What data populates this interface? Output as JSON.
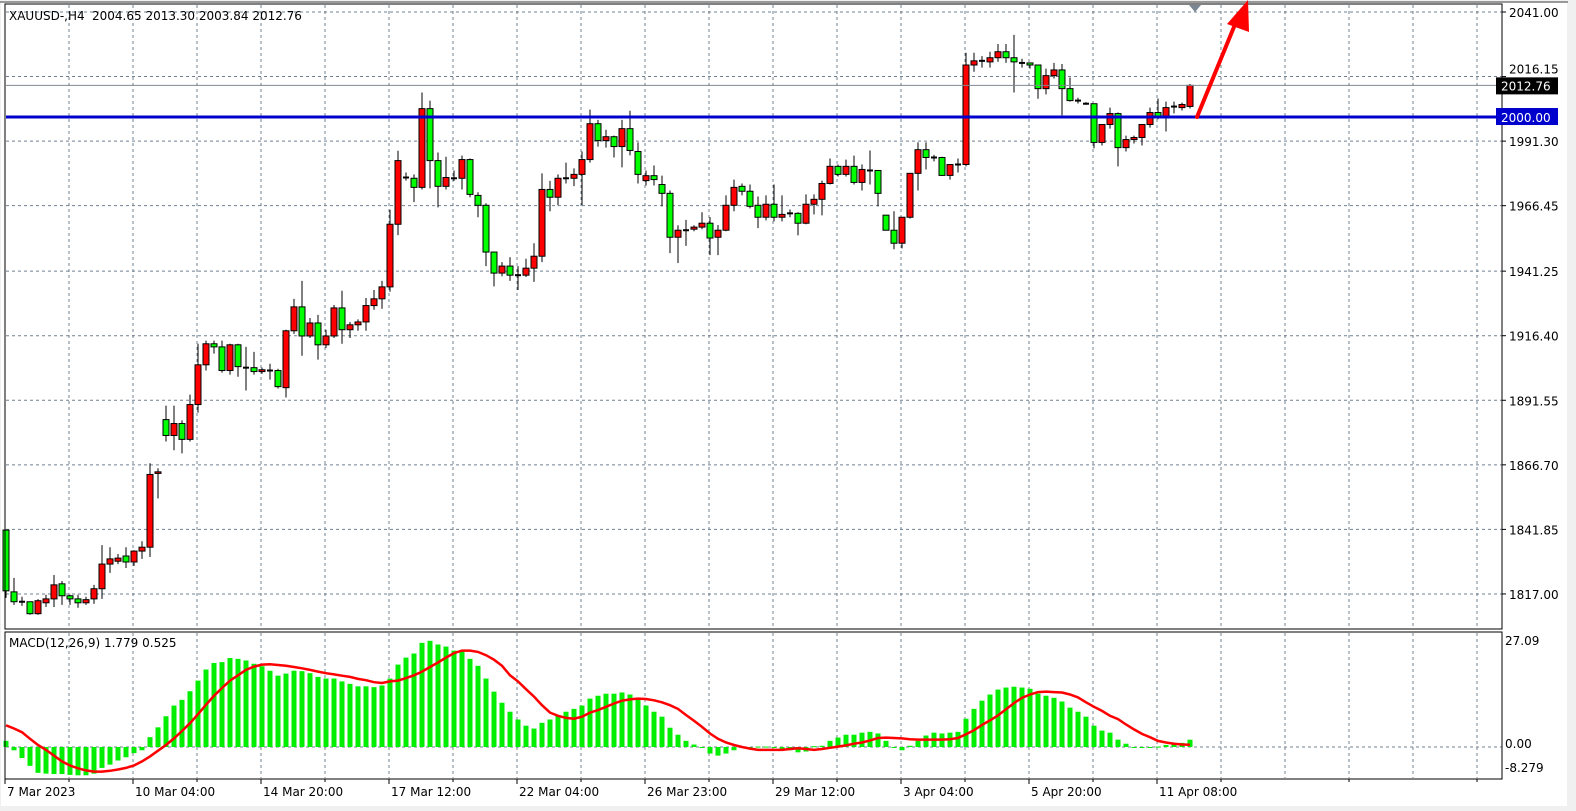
{
  "header": {
    "symbol": "XAUUSD-,H4",
    "ohlc_text": "2004.65 2013.30 2003.84 2012.76"
  },
  "macd_header": {
    "label": "MACD(12,26,9) 1.779 0.525"
  },
  "colors": {
    "bull_candle": "#ff0000",
    "bear_candle": "#00ff00",
    "level_line": "#0000cc",
    "bid_line": "#808890",
    "macd_histogram": "#00ee00",
    "signal_line": "#ff0000",
    "arrow": "#ff0000",
    "grid": "#708090"
  },
  "price_axis": {
    "ticks": [
      "2041.00",
      "2016.15",
      "1991.30",
      "1966.45",
      "1941.25",
      "1916.40",
      "1891.55",
      "1866.70",
      "1841.85",
      "1817.00"
    ],
    "current_price_label": "2012.76",
    "level_label": "2000.00"
  },
  "macd_axis": {
    "ticks": [
      "27.09",
      "0.00",
      "-8.279"
    ]
  },
  "time_axis": {
    "labels": [
      "7 Mar 2023",
      "10 Mar 04:00",
      "14 Mar 20:00",
      "17 Mar 12:00",
      "22 Mar 04:00",
      "26 Mar 23:00",
      "29 Mar 12:00",
      "3 Apr 04:00",
      "5 Apr 20:00",
      "11 Apr 08:00"
    ]
  },
  "chart_data": [
    {
      "type": "candlestick",
      "symbol": "XAUUSD-",
      "timeframe": "H4",
      "ylim": [
        1806.5,
        2043.5
      ],
      "grid": true,
      "bull_color": "red",
      "bear_color": "green",
      "horizontal_lines": [
        {
          "price": 2000.0,
          "color": "#0000cc"
        },
        {
          "price": 2012.76,
          "color": "#808890"
        }
      ],
      "annotation": {
        "type": "arrow",
        "direction": "up",
        "color": "#ff0000",
        "from_price": 2000.0
      },
      "ohlc_fields": [
        "open",
        "high",
        "low",
        "close"
      ],
      "candles": [
        [
          1841.6,
          1841.6,
          1815.5,
          1818.2
        ],
        [
          1817.8,
          1823.2,
          1812.8,
          1814.0
        ],
        [
          1814.0,
          1815.9,
          1812.4,
          1814.0
        ],
        [
          1814.0,
          1814.0,
          1809.0,
          1809.4
        ],
        [
          1809.4,
          1815.0,
          1809.0,
          1814.4
        ],
        [
          1813.6,
          1816.7,
          1812.0,
          1815.1
        ],
        [
          1815.1,
          1824.3,
          1812.0,
          1820.5
        ],
        [
          1820.9,
          1822.0,
          1812.8,
          1816.3
        ],
        [
          1816.3,
          1816.7,
          1812.8,
          1815.1
        ],
        [
          1815.1,
          1816.7,
          1811.7,
          1813.6
        ],
        [
          1813.6,
          1815.9,
          1812.8,
          1814.8
        ],
        [
          1815.1,
          1820.5,
          1813.2,
          1819.0
        ],
        [
          1819.0,
          1835.8,
          1815.1,
          1828.5
        ],
        [
          1828.5,
          1835.0,
          1825.1,
          1830.5
        ],
        [
          1829.6,
          1832.4,
          1828.5,
          1830.8
        ],
        [
          1831.6,
          1835.0,
          1827.0,
          1829.3
        ],
        [
          1829.3,
          1833.8,
          1827.8,
          1833.5
        ],
        [
          1833.5,
          1837.3,
          1830.5,
          1835.0
        ],
        [
          1835.0,
          1867.3,
          1831.2,
          1863.0
        ],
        [
          1863.4,
          1865.4,
          1853.8,
          1864.0
        ],
        [
          1884.1,
          1889.5,
          1875.7,
          1878.0
        ],
        [
          1878.0,
          1889.5,
          1872.3,
          1882.6
        ],
        [
          1882.6,
          1883.8,
          1871.1,
          1876.5
        ],
        [
          1876.5,
          1893.7,
          1875.7,
          1889.9
        ],
        [
          1889.9,
          1913.3,
          1886.8,
          1905.2
        ],
        [
          1905.2,
          1914.5,
          1903.0,
          1913.3
        ],
        [
          1913.3,
          1914.5,
          1909.5,
          1912.1
        ],
        [
          1912.1,
          1914.5,
          1902.2,
          1903.0
        ],
        [
          1903.0,
          1913.3,
          1901.4,
          1912.9
        ],
        [
          1912.9,
          1913.3,
          1900.6,
          1904.5
        ],
        [
          1904.1,
          1912.1,
          1895.3,
          1904.1
        ],
        [
          1904.1,
          1910.2,
          1901.4,
          1902.6
        ],
        [
          1902.6,
          1904.1,
          1901.8,
          1903.3
        ],
        [
          1903.0,
          1905.6,
          1899.5,
          1903.0
        ],
        [
          1903.0,
          1903.7,
          1896.1,
          1896.8
        ],
        [
          1896.4,
          1918.7,
          1892.6,
          1918.3
        ],
        [
          1918.3,
          1930.6,
          1917.1,
          1927.5
        ],
        [
          1927.5,
          1937.5,
          1908.7,
          1916.3
        ],
        [
          1916.3,
          1923.2,
          1915.5,
          1921.3
        ],
        [
          1921.3,
          1924.4,
          1907.2,
          1912.9
        ],
        [
          1912.9,
          1918.7,
          1911.7,
          1916.3
        ],
        [
          1916.3,
          1928.2,
          1915.5,
          1927.1
        ],
        [
          1927.1,
          1933.7,
          1913.3,
          1918.7
        ],
        [
          1918.7,
          1921.7,
          1915.5,
          1920.6
        ],
        [
          1920.6,
          1922.7,
          1918.3,
          1921.7
        ],
        [
          1921.7,
          1930.9,
          1918.3,
          1928.0
        ],
        [
          1928.0,
          1934.0,
          1926.4,
          1930.6
        ],
        [
          1930.6,
          1937.5,
          1926.8,
          1935.2
        ],
        [
          1935.2,
          1964.9,
          1933.3,
          1959.3
        ],
        [
          1959.3,
          1987.6,
          1955.1,
          1983.8
        ],
        [
          1977.3,
          1979.2,
          1976.1,
          1977.3
        ],
        [
          1977.0,
          1978.5,
          1967.8,
          1973.5
        ],
        [
          1973.5,
          2010.0,
          1972.7,
          2003.8
        ],
        [
          2003.8,
          2006.9,
          1973.1,
          1983.8
        ],
        [
          1983.8,
          1986.9,
          1965.8,
          1973.9
        ],
        [
          1973.9,
          1985.3,
          1972.7,
          1977.3
        ],
        [
          1977.0,
          1980.0,
          1976.0,
          1977.0
        ],
        [
          1977.0,
          1985.7,
          1972.7,
          1984.2
        ],
        [
          1984.2,
          1984.6,
          1969.7,
          1970.8
        ],
        [
          1970.4,
          1971.6,
          1962.0,
          1966.6
        ],
        [
          1966.6,
          1967.4,
          1943.2,
          1948.6
        ],
        [
          1948.6,
          1948.6,
          1935.4,
          1940.5
        ],
        [
          1940.5,
          1944.7,
          1939.3,
          1943.2
        ],
        [
          1943.2,
          1946.6,
          1937.5,
          1939.7
        ],
        [
          1939.7,
          1943.2,
          1934.0,
          1939.7
        ],
        [
          1939.7,
          1946.0,
          1939.0,
          1942.4
        ],
        [
          1942.4,
          1952.0,
          1937.1,
          1947.0
        ],
        [
          1947.0,
          1978.9,
          1944.7,
          1972.7
        ],
        [
          1972.7,
          1976.0,
          1964.3,
          1969.7
        ],
        [
          1969.7,
          1978.5,
          1966.6,
          1977.0
        ],
        [
          1977.0,
          1983.0,
          1975.0,
          1977.0
        ],
        [
          1977.0,
          1980.8,
          1974.0,
          1978.5
        ],
        [
          1978.5,
          1987.3,
          1966.6,
          1984.2
        ],
        [
          1984.2,
          2003.4,
          1983.0,
          1998.0
        ],
        [
          1998.0,
          1999.5,
          1989.2,
          1991.5
        ],
        [
          1991.5,
          1995.7,
          1988.8,
          1993.0
        ],
        [
          1993.0,
          1993.4,
          1985.0,
          1989.2
        ],
        [
          1989.2,
          1999.5,
          1981.2,
          1996.1
        ],
        [
          1996.1,
          2003.0,
          1985.8,
          1987.7
        ],
        [
          1987.3,
          1990.8,
          1975.0,
          1978.5
        ],
        [
          1976.1,
          1980.0,
          1974.2,
          1978.0
        ],
        [
          1978.0,
          1981.9,
          1974.2,
          1976.5
        ],
        [
          1974.6,
          1978.0,
          1966.2,
          1971.2
        ],
        [
          1971.2,
          1972.3,
          1948.2,
          1954.3
        ],
        [
          1954.3,
          1958.9,
          1944.4,
          1957.0
        ],
        [
          1957.0,
          1961.0,
          1951.0,
          1957.0
        ],
        [
          1957.4,
          1958.9,
          1956.6,
          1958.2
        ],
        [
          1958.2,
          1963.9,
          1957.4,
          1959.7
        ],
        [
          1959.7,
          1962.0,
          1947.4,
          1954.0
        ],
        [
          1954.3,
          1959.0,
          1947.4,
          1957.0
        ],
        [
          1957.0,
          1970.4,
          1956.6,
          1966.6
        ],
        [
          1966.6,
          1976.5,
          1964.3,
          1973.5
        ],
        [
          1973.9,
          1975.0,
          1970.4,
          1972.0
        ],
        [
          1972.0,
          1974.6,
          1965.4,
          1966.2
        ],
        [
          1966.6,
          1970.0,
          1957.8,
          1962.0
        ],
        [
          1962.0,
          1970.4,
          1960.8,
          1967.0
        ],
        [
          1967.0,
          1974.6,
          1960.4,
          1962.0
        ],
        [
          1962.0,
          1970.4,
          1960.4,
          1963.1
        ],
        [
          1963.5,
          1965.0,
          1962.0,
          1963.5
        ],
        [
          1963.5,
          1963.9,
          1955.0,
          1959.7
        ],
        [
          1959.7,
          1970.8,
          1959.3,
          1967.0
        ],
        [
          1967.0,
          1970.8,
          1963.1,
          1968.9
        ],
        [
          1968.9,
          1976.1,
          1962.7,
          1975.0
        ],
        [
          1975.0,
          1984.6,
          1974.6,
          1981.6
        ],
        [
          1981.6,
          1982.3,
          1977.7,
          1978.5
        ],
        [
          1978.5,
          1984.2,
          1977.7,
          1981.6
        ],
        [
          1981.6,
          1985.7,
          1974.6,
          1975.4
        ],
        [
          1975.4,
          1982.3,
          1972.3,
          1980.4
        ],
        [
          1980.0,
          1987.7,
          1974.6,
          1980.0
        ],
        [
          1980.0,
          1980.0,
          1966.2,
          1971.2
        ],
        [
          1962.8,
          1962.8,
          1957.0,
          1957.0
        ],
        [
          1957.0,
          1964.3,
          1949.7,
          1952.0
        ],
        [
          1952.0,
          1962.0,
          1950.0,
          1962.0
        ],
        [
          1962.0,
          1979.0,
          1961.5,
          1978.9
        ],
        [
          1978.9,
          1990.8,
          1972.3,
          1988.0
        ],
        [
          1988.0,
          1990.8,
          1980.4,
          1985.0
        ],
        [
          1985.0,
          1986.0,
          1983.5,
          1985.0
        ],
        [
          1985.0,
          1985.3,
          1978.0,
          1978.1
        ],
        [
          1978.1,
          1982.3,
          1976.5,
          1982.3
        ],
        [
          1982.3,
          1984.6,
          1979.2,
          1982.3
        ],
        [
          1982.3,
          2025.3,
          1981.6,
          2020.6
        ],
        [
          2020.6,
          2025.3,
          2018.0,
          2022.2
        ],
        [
          2022.2,
          2024.0,
          2019.6,
          2022.2
        ],
        [
          2021.8,
          2025.7,
          2019.6,
          2023.4
        ],
        [
          2023.4,
          2028.7,
          2021.8,
          2025.7
        ],
        [
          2025.7,
          2028.7,
          2021.4,
          2023.4
        ],
        [
          2023.4,
          2032.2,
          2010.0,
          2021.8
        ],
        [
          2021.4,
          2023.0,
          2019.6,
          2021.4
        ],
        [
          2021.4,
          2021.4,
          2019.2,
          2020.6
        ],
        [
          2020.6,
          2020.6,
          2007.6,
          2011.5
        ],
        [
          2011.5,
          2019.2,
          2009.3,
          2016.5
        ],
        [
          2016.5,
          2021.4,
          2015.4,
          2018.7
        ],
        [
          2018.7,
          2021.0,
          2001.2,
          2011.5
        ],
        [
          2011.5,
          2015.8,
          2006.5,
          2006.9
        ],
        [
          2006.9,
          2008.0,
          2005.8,
          2006.9
        ],
        [
          2005.7,
          2006.3,
          2005.3,
          2005.7
        ],
        [
          2005.7,
          2005.7,
          1988.5,
          1990.8
        ],
        [
          1990.8,
          1997.7,
          1989.6,
          1997.7
        ],
        [
          1997.7,
          2004.2,
          1996.1,
          2001.9
        ],
        [
          2001.9,
          2002.3,
          1981.6,
          1988.8
        ],
        [
          1988.8,
          1993.4,
          1987.3,
          1991.9
        ],
        [
          1991.9,
          1993.4,
          1990.4,
          1992.7
        ],
        [
          1992.7,
          1997.7,
          1989.6,
          1997.7
        ],
        [
          1997.7,
          2004.2,
          1996.5,
          2002.3
        ],
        [
          2002.3,
          2007.7,
          1999.7,
          2000.8
        ],
        [
          2000.8,
          2006.5,
          1995.0,
          2004.2
        ],
        [
          2004.6,
          2006.5,
          2002.0,
          2004.6
        ],
        [
          2004.2,
          2006.1,
          2003.1,
          2005.4
        ],
        [
          2004.65,
          2013.3,
          2003.84,
          2012.76
        ]
      ]
    },
    {
      "type": "bar+line",
      "name": "MACD(12,26,9)",
      "ylim": [
        -8.279,
        27.09
      ],
      "histogram": [
        1.5,
        -0.8,
        -2.7,
        -4.6,
        -6.3,
        -6.5,
        -6.6,
        -6.6,
        -6.8,
        -6.9,
        -6.9,
        -6.5,
        -5.1,
        -4.3,
        -3.3,
        -2.5,
        -1.5,
        -0.8,
        2.4,
        4.8,
        7.5,
        10.1,
        11.5,
        13.6,
        16.2,
        18.9,
        20.5,
        20.7,
        21.7,
        21.5,
        21.1,
        20.3,
        19.7,
        18.6,
        17.4,
        17.9,
        18.6,
        18.5,
        18.0,
        17.1,
        16.7,
        16.7,
        16.0,
        15.4,
        14.8,
        14.8,
        14.6,
        15.0,
        16.7,
        20.1,
        21.8,
        22.8,
        25.4,
        25.9,
        25.0,
        24.5,
        23.5,
        23.3,
        21.5,
        19.8,
        16.7,
        13.5,
        10.8,
        8.6,
        6.7,
        5.2,
        4.5,
        5.9,
        6.7,
        7.6,
        8.6,
        9.3,
        10.1,
        11.8,
        12.5,
        13.0,
        13.0,
        13.3,
        12.8,
        11.5,
        10.1,
        8.6,
        7.4,
        4.7,
        3.0,
        1.5,
        0.6,
        -0.2,
        -1.6,
        -2.1,
        -1.6,
        -0.8,
        -0.2,
        -0.2,
        0.1,
        0.1,
        -0.2,
        -0.5,
        -0.8,
        -1.3,
        -1.1,
        0.2,
        0.3,
        1.5,
        2.3,
        3.0,
        3.0,
        3.5,
        3.7,
        3.3,
        1.5,
        -0.2,
        -0.8,
        0.3,
        1.5,
        2.8,
        3.5,
        3.3,
        3.5,
        3.7,
        6.9,
        9.3,
        11.3,
        12.8,
        14.0,
        14.5,
        14.7,
        14.5,
        14.2,
        13.0,
        12.5,
        12.0,
        11.1,
        9.6,
        8.6,
        7.4,
        5.2,
        4.0,
        3.5,
        1.8,
        0.8,
        0.0,
        -0.2,
        0.0,
        0.1,
        0.5,
        1.0,
        1.0,
        1.779
      ],
      "signal": [
        5.3,
        4.5,
        3.6,
        2.0,
        0.5,
        -0.7,
        -2.1,
        -3.5,
        -4.5,
        -5.2,
        -5.7,
        -6.0,
        -6.0,
        -5.8,
        -5.5,
        -5.1,
        -4.5,
        -3.5,
        -2.3,
        -0.9,
        0.5,
        2.1,
        3.9,
        5.8,
        8.0,
        10.3,
        12.5,
        14.4,
        16.2,
        17.5,
        18.8,
        19.6,
        20.1,
        20.2,
        20.0,
        19.8,
        19.5,
        19.2,
        18.8,
        18.4,
        18.0,
        17.7,
        17.4,
        17.1,
        16.6,
        16.3,
        15.8,
        15.6,
        16.0,
        16.2,
        16.8,
        17.5,
        18.4,
        19.5,
        20.6,
        21.8,
        22.9,
        23.5,
        23.5,
        23.2,
        22.4,
        21.3,
        19.8,
        17.5,
        16.0,
        14.1,
        12.3,
        10.2,
        8.4,
        7.6,
        7.1,
        6.9,
        7.4,
        8.4,
        9.0,
        9.8,
        10.6,
        11.3,
        11.6,
        11.8,
        11.7,
        11.4,
        10.9,
        10.2,
        9.3,
        7.8,
        6.4,
        4.9,
        3.3,
        2.0,
        1.1,
        0.5,
        0.0,
        -0.4,
        -0.7,
        -0.7,
        -0.7,
        -0.7,
        -0.5,
        -0.3,
        -0.5,
        -0.7,
        -0.5,
        -0.2,
        0.1,
        0.4,
        0.8,
        1.1,
        1.6,
        2.2,
        2.3,
        2.2,
        2.1,
        1.9,
        1.8,
        1.8,
        1.8,
        1.8,
        1.9,
        2.2,
        3.1,
        4.1,
        5.4,
        6.5,
        7.7,
        9.2,
        10.7,
        12.0,
        12.8,
        13.4,
        13.5,
        13.4,
        13.3,
        12.8,
        12.1,
        10.9,
        9.8,
        8.8,
        7.6,
        6.8,
        5.5,
        4.3,
        3.2,
        2.4,
        1.5,
        1.1,
        0.8,
        0.6,
        0.525
      ]
    }
  ]
}
